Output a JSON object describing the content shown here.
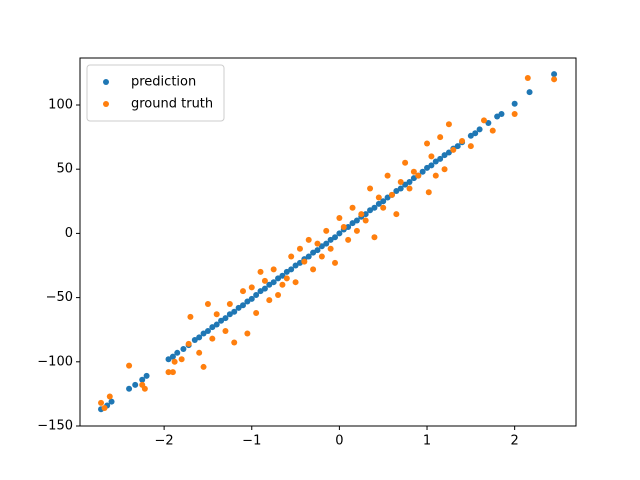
{
  "chart_data": {
    "type": "scatter",
    "xlim": [
      -2.96,
      2.7
    ],
    "ylim": [
      -150,
      136.6
    ],
    "xticks": [
      {
        "value": -2,
        "label": "−2"
      },
      {
        "value": -1,
        "label": "−1"
      },
      0,
      1,
      2
    ],
    "yticks": [
      {
        "value": -150,
        "label": "−150"
      },
      {
        "value": -100,
        "label": "−100"
      },
      {
        "value": -50,
        "label": "−50"
      },
      0,
      50,
      100
    ],
    "grid": false,
    "legend": "upper left",
    "series": [
      {
        "name": "prediction",
        "color": "#1f77b4",
        "x": [
          -2.72,
          -2.65,
          -2.6,
          -2.4,
          -2.33,
          -2.25,
          -2.2,
          -1.95,
          -1.9,
          -1.85,
          -1.78,
          -1.72,
          -1.65,
          -1.6,
          -1.55,
          -1.5,
          -1.45,
          -1.4,
          -1.35,
          -1.3,
          -1.25,
          -1.2,
          -1.15,
          -1.1,
          -1.05,
          -1.0,
          -0.95,
          -0.9,
          -0.85,
          -0.8,
          -0.75,
          -0.7,
          -0.65,
          -0.6,
          -0.55,
          -0.5,
          -0.45,
          -0.4,
          -0.35,
          -0.3,
          -0.25,
          -0.2,
          -0.15,
          -0.1,
          -0.05,
          0,
          0.05,
          0.1,
          0.15,
          0.2,
          0.25,
          0.3,
          0.35,
          0.4,
          0.45,
          0.5,
          0.55,
          0.6,
          0.65,
          0.7,
          0.75,
          0.8,
          0.85,
          0.9,
          0.95,
          1.0,
          1.05,
          1.1,
          1.15,
          1.2,
          1.25,
          1.3,
          1.35,
          1.4,
          1.5,
          1.55,
          1.6,
          1.7,
          1.8,
          1.85,
          2.0,
          2.17,
          2.45
        ],
        "values": [
          -137,
          -134,
          -131,
          -121,
          -118,
          -114,
          -111,
          -98,
          -96,
          -93,
          -90,
          -87,
          -83,
          -81,
          -78,
          -76,
          -73,
          -71,
          -68,
          -66,
          -63,
          -61,
          -58,
          -56,
          -53,
          -51,
          -48,
          -45,
          -43,
          -40,
          -38,
          -35,
          -33,
          -30,
          -28,
          -25,
          -23,
          -20,
          -18,
          -15,
          -13,
          -10,
          -8,
          -5,
          -3,
          0,
          3,
          5,
          8,
          10,
          13,
          15,
          18,
          20,
          23,
          25,
          28,
          30,
          33,
          35,
          38,
          40,
          43,
          45,
          48,
          51,
          53,
          56,
          58,
          61,
          63,
          66,
          68,
          71,
          76,
          78,
          81,
          86,
          91,
          93,
          101,
          110,
          124
        ]
      },
      {
        "name": "ground truth",
        "color": "#ff7f0e",
        "x": [
          -2.72,
          -2.68,
          -2.62,
          -2.4,
          -2.25,
          -2.22,
          -1.95,
          -1.9,
          -1.88,
          -1.8,
          -1.72,
          -1.7,
          -1.6,
          -1.55,
          -1.5,
          -1.45,
          -1.4,
          -1.3,
          -1.25,
          -1.2,
          -1.1,
          -1.05,
          -1.0,
          -0.95,
          -0.9,
          -0.85,
          -0.8,
          -0.75,
          -0.7,
          -0.65,
          -0.6,
          -0.55,
          -0.5,
          -0.45,
          -0.4,
          -0.35,
          -0.3,
          -0.25,
          -0.2,
          -0.15,
          -0.1,
          -0.05,
          0,
          0.05,
          0.1,
          0.15,
          0.2,
          0.25,
          0.3,
          0.35,
          0.4,
          0.45,
          0.5,
          0.55,
          0.6,
          0.65,
          0.7,
          0.75,
          0.8,
          0.85,
          0.9,
          1.0,
          1.02,
          1.05,
          1.1,
          1.15,
          1.2,
          1.25,
          1.3,
          1.4,
          1.5,
          1.65,
          1.75,
          2.0,
          2.15,
          2.45
        ],
        "values": [
          -132,
          -136,
          -127,
          -103,
          -118,
          -121,
          -108,
          -108,
          -100,
          -98,
          -86,
          -65,
          -93,
          -104,
          -55,
          -82,
          -63,
          -76,
          -55,
          -85,
          -45,
          -78,
          -42,
          -62,
          -30,
          -37,
          -52,
          -28,
          -48,
          -40,
          -35,
          -18,
          -38,
          -12,
          -22,
          -5,
          -28,
          -8,
          -18,
          2,
          -12,
          -23,
          12,
          5,
          -5,
          20,
          2,
          15,
          10,
          35,
          -3,
          28,
          20,
          45,
          30,
          15,
          40,
          55,
          35,
          48,
          45,
          70,
          32,
          60,
          45,
          75,
          50,
          85,
          65,
          72,
          68,
          88,
          80,
          93,
          121,
          120
        ]
      }
    ]
  }
}
